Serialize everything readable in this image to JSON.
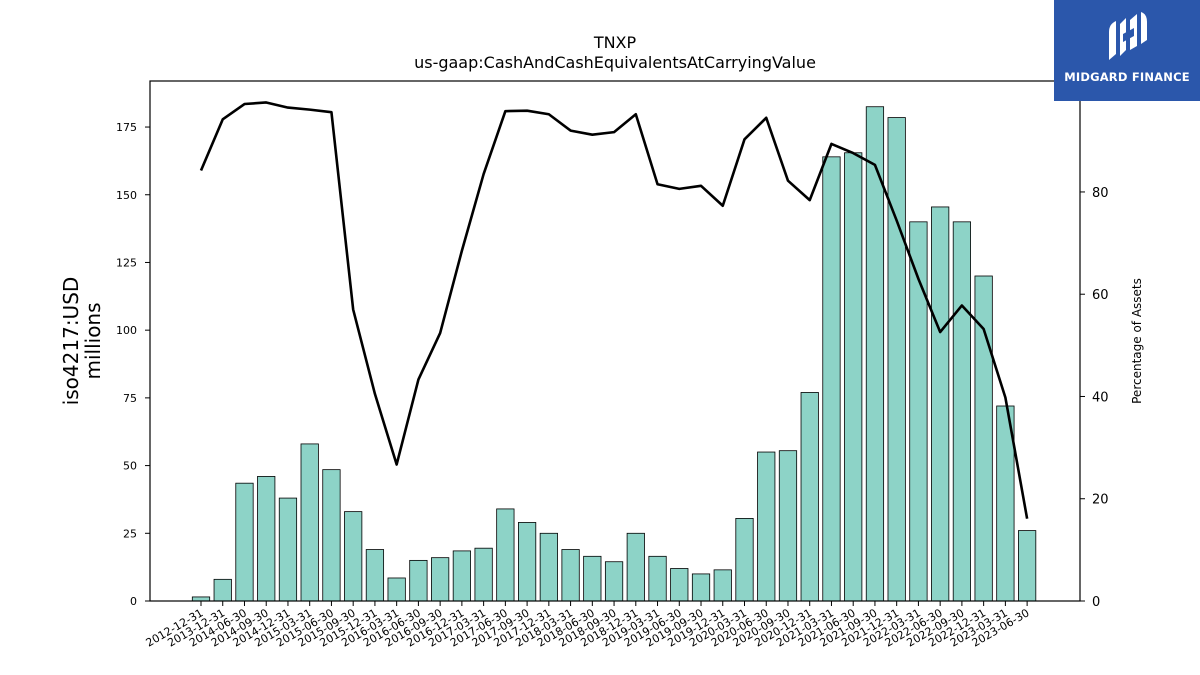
{
  "chart_data": {
    "type": "bar",
    "title": "TNXP",
    "subtitle": "us-gaap:CashAndCashEquivalentsAtCarryingValue",
    "ylabel_line1": "iso4217:USD",
    "ylabel_line2": "millions",
    "y2label": "Percentage of Assets",
    "ylim": [
      0,
      192
    ],
    "y2lim": [
      0,
      101.7
    ],
    "yticks": [
      0,
      25,
      50,
      75,
      100,
      125,
      150,
      175
    ],
    "y2ticks": [
      0,
      20,
      40,
      60,
      80
    ],
    "categories": [
      "2012-12-31",
      "2013-12-31",
      "2014-06-30",
      "2014-09-30",
      "2014-12-31",
      "2015-03-31",
      "2015-06-30",
      "2015-09-30",
      "2015-12-31",
      "2016-03-31",
      "2016-06-30",
      "2016-09-30",
      "2016-12-31",
      "2017-03-31",
      "2017-06-30",
      "2017-09-30",
      "2017-12-31",
      "2018-03-31",
      "2018-06-30",
      "2018-09-30",
      "2018-12-31",
      "2019-03-31",
      "2019-06-30",
      "2019-09-30",
      "2019-12-31",
      "2020-03-31",
      "2020-06-30",
      "2020-09-30",
      "2020-12-31",
      "2021-03-31",
      "2021-06-30",
      "2021-09-30",
      "2021-12-31",
      "2022-03-31",
      "2022-06-30",
      "2022-09-30",
      "2022-12-31",
      "2023-03-31",
      "2023-06-30"
    ],
    "series": [
      {
        "name": "iso4217:USD millions",
        "kind": "bar",
        "color": "#8dd3c7",
        "values": [
          1.5,
          8,
          43.5,
          46,
          38,
          58,
          48.5,
          33,
          19,
          8.5,
          15,
          16,
          18.5,
          19.5,
          34,
          29,
          25,
          19,
          16.5,
          14.5,
          25,
          16.5,
          12,
          10,
          11.5,
          30.5,
          55,
          55.5,
          77,
          164,
          165.5,
          182.5,
          178.5,
          140,
          145.5,
          140,
          120,
          72,
          26
        ]
      },
      {
        "name": "Percentage of Assets",
        "kind": "line",
        "axis": "right",
        "color": "#000000",
        "values": [
          84.2,
          94.2,
          97.2,
          97.5,
          96.5,
          96.1,
          95.6,
          57,
          40.5,
          26.7,
          43.3,
          52.4,
          68.5,
          83.5,
          95.8,
          95.9,
          95.2,
          92,
          91.2,
          91.7,
          95.2,
          81.5,
          80.6,
          81.2,
          77.3,
          90.3,
          94.5,
          82.2,
          78.4,
          89.4,
          87.6,
          85.3,
          74.4,
          63,
          52.6,
          57.8,
          53.2,
          39.8,
          16.1
        ]
      }
    ],
    "grid": false,
    "legend": "none"
  },
  "logo": {
    "text": "MIDGARD FINANCE",
    "icon": "midgard-logo-icon",
    "background": "#2b57ab"
  }
}
